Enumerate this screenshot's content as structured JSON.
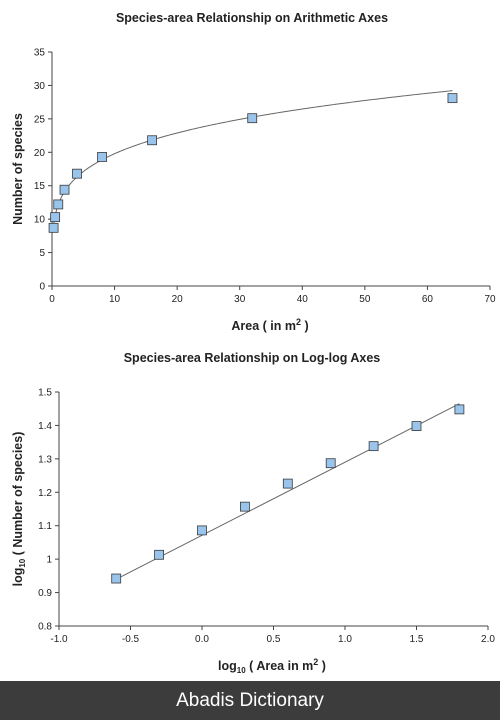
{
  "chart_data": [
    {
      "type": "scatter",
      "title": "Species-area Relationship on Arithmetic Axes",
      "xlabel": "Area ( in m",
      "xlabel_sup": "2",
      "xlabel_end": " )",
      "ylabel": "Number of species",
      "xlim": [
        0,
        70
      ],
      "ylim": [
        0,
        35
      ],
      "xticks": [
        0,
        10,
        20,
        30,
        40,
        50,
        60,
        70
      ],
      "xtick_labels": [
        "0",
        "10",
        "20",
        "30",
        "40",
        "50",
        "60",
        "70"
      ],
      "yticks": [
        0,
        5,
        10,
        15,
        20,
        25,
        30,
        35
      ],
      "ytick_labels": [
        "0",
        "5",
        "10",
        "15",
        "20",
        "25",
        "30",
        "35"
      ],
      "grid": false,
      "series": [
        {
          "x": [
            0.25,
            0.5,
            1,
            2,
            4,
            8,
            16,
            32,
            64
          ],
          "y": [
            8.7,
            10.3,
            12.2,
            14.4,
            16.8,
            19.3,
            21.8,
            25.1,
            28.1
          ],
          "marker": "square",
          "marker_color": "#99c4ec",
          "trendline": {
            "type": "power",
            "coefficient": 12.2,
            "exponent": 0.21,
            "color": "#666666"
          }
        }
      ]
    },
    {
      "type": "scatter",
      "title": "Species-area Relationship on Log-log Axes",
      "xlabel": "log",
      "xlabel_sub": "10",
      "xlabel_end": " ( Area in m",
      "xlabel_sup": "2",
      "xlabel_close": " )",
      "ylabel": "log",
      "ylabel_sub": "10",
      "ylabel_end": " ( Number of species)",
      "xlim": [
        -1.0,
        2.0
      ],
      "ylim": [
        0.8,
        1.5
      ],
      "xticks": [
        -1.0,
        -0.5,
        0.0,
        0.5,
        1.0,
        1.5,
        2.0
      ],
      "xtick_labels": [
        "-1.0",
        "-0.5",
        "0.0",
        "0.5",
        "1.0",
        "1.5",
        "2.0"
      ],
      "yticks": [
        0.8,
        0.9,
        1.0,
        1.1,
        1.2,
        1.3,
        1.4,
        1.5
      ],
      "ytick_labels": [
        "0.8",
        "0.9",
        "1",
        "1.1",
        "1.2",
        "1.3",
        "1.4",
        "1.5"
      ],
      "grid": false,
      "series": [
        {
          "x": [
            -0.6,
            -0.3,
            0.0,
            0.3,
            0.6,
            0.9,
            1.2,
            1.5,
            1.8
          ],
          "y": [
            0.942,
            1.013,
            1.086,
            1.157,
            1.226,
            1.287,
            1.338,
            1.398,
            1.448
          ],
          "marker": "square",
          "marker_color": "#99c4ec",
          "trendline": {
            "type": "linear",
            "from": [
              -0.6,
              0.94
            ],
            "to": [
              1.8,
              1.465
            ],
            "color": "#666666"
          }
        }
      ]
    }
  ],
  "footer": {
    "text": "Abadis Dictionary"
  }
}
